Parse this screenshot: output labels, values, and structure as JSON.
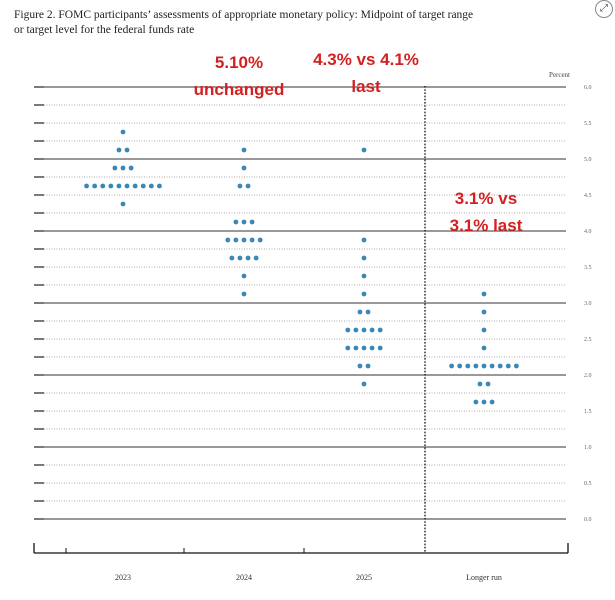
{
  "caption": {
    "line1": "Figure 2.  FOMC participants’ assessments of appropriate monetary policy:  Midpoint of target range",
    "line2": "or target level for the federal funds rate"
  },
  "chart_data": {
    "type": "scatter",
    "title": "",
    "ylabel": "Percent",
    "ylim": [
      0.0,
      6.0
    ],
    "yticks": [
      "6.0",
      "5.5",
      "5.0",
      "4.5",
      "4.0",
      "3.5",
      "3.0",
      "2.5",
      "2.0",
      "1.5",
      "1.0",
      "0.5",
      "0.0"
    ],
    "categories": [
      "2023",
      "2024",
      "2025",
      "Longer run"
    ],
    "series": [
      {
        "category": "2023",
        "dots": [
          {
            "y": 5.375,
            "count": 1
          },
          {
            "y": 5.125,
            "count": 2
          },
          {
            "y": 4.875,
            "count": 3
          },
          {
            "y": 4.625,
            "count": 10
          },
          {
            "y": 4.375,
            "count": 1
          }
        ]
      },
      {
        "category": "2024",
        "dots": [
          {
            "y": 5.125,
            "count": 1
          },
          {
            "y": 4.875,
            "count": 1
          },
          {
            "y": 4.625,
            "count": 2
          },
          {
            "y": 4.125,
            "count": 3
          },
          {
            "y": 3.875,
            "count": 5
          },
          {
            "y": 3.625,
            "count": 4
          },
          {
            "y": 3.375,
            "count": 1
          },
          {
            "y": 3.125,
            "count": 1
          }
        ]
      },
      {
        "category": "2025",
        "dots": [
          {
            "y": 5.125,
            "count": 1
          },
          {
            "y": 3.875,
            "count": 1
          },
          {
            "y": 3.625,
            "count": 1
          },
          {
            "y": 3.375,
            "count": 1
          },
          {
            "y": 3.125,
            "count": 1
          },
          {
            "y": 2.875,
            "count": 2
          },
          {
            "y": 2.625,
            "count": 5
          },
          {
            "y": 2.375,
            "count": 5
          },
          {
            "y": 2.125,
            "count": 2
          },
          {
            "y": 1.875,
            "count": 1
          }
        ]
      },
      {
        "category": "Longer run",
        "dots": [
          {
            "y": 3.125,
            "count": 1
          },
          {
            "y": 2.875,
            "count": 1
          },
          {
            "y": 2.625,
            "count": 1
          },
          {
            "y": 2.375,
            "count": 1
          },
          {
            "y": 2.125,
            "count": 9
          },
          {
            "y": 1.875,
            "count": 2
          },
          {
            "y": 1.625,
            "count": 3
          }
        ]
      }
    ],
    "dot_color": "#3a86b5",
    "grid": true,
    "annotations": [
      {
        "lines": [
          "5.10%",
          "unchanged"
        ],
        "color": "#d42020"
      },
      {
        "lines": [
          "4.3% vs 4.1%",
          "last"
        ],
        "color": "#d42020"
      },
      {
        "lines": [
          "3.1% vs",
          "3.1% last"
        ],
        "color": "#d42020"
      }
    ]
  }
}
